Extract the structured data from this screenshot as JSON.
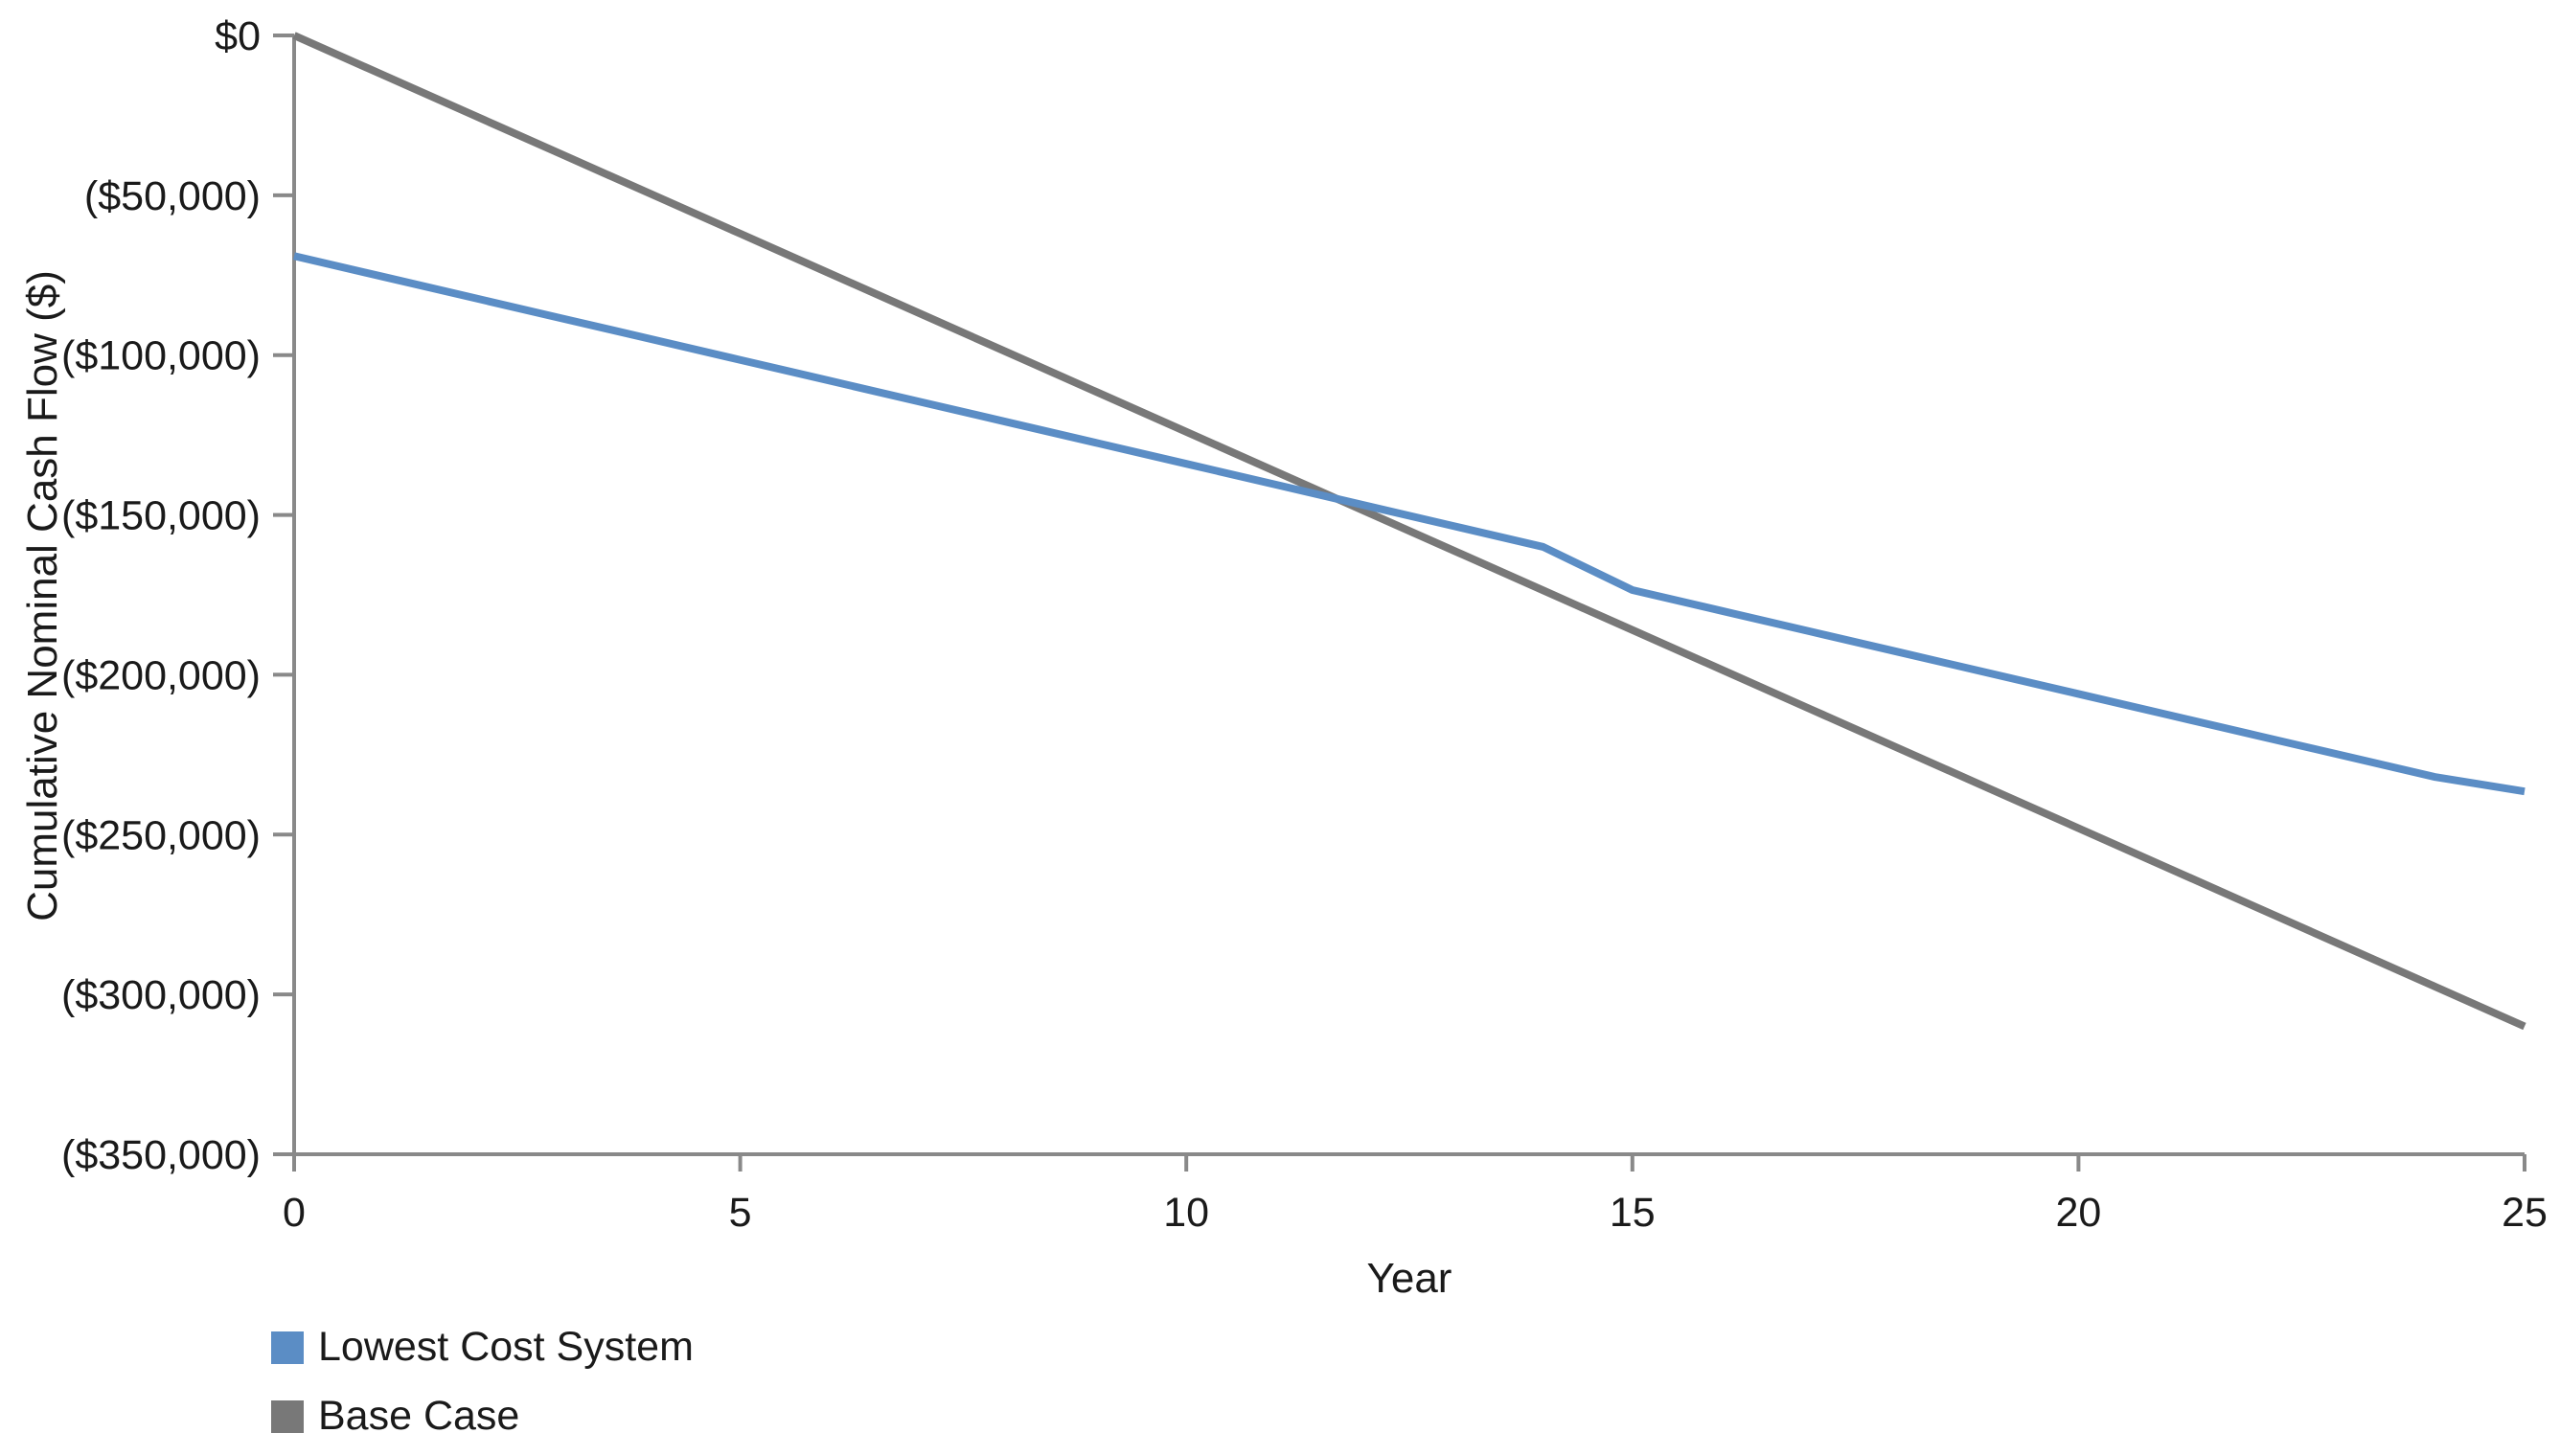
{
  "chart_data": {
    "type": "line",
    "xlabel": "Year",
    "ylabel": "Cumulative Nominal Cash Flow ($)",
    "x": [
      0,
      1,
      2,
      3,
      4,
      5,
      6,
      7,
      8,
      9,
      10,
      11,
      12,
      13,
      14,
      15,
      16,
      17,
      18,
      19,
      20,
      21,
      22,
      23,
      24,
      25
    ],
    "series": [
      {
        "name": "Lowest Cost System",
        "color": "#5B8DC5",
        "values": [
          -69000,
          -75500,
          -82000,
          -88500,
          -95000,
          -101500,
          -108000,
          -114500,
          -121000,
          -127500,
          -134000,
          -140500,
          -147000,
          -153500,
          -160000,
          -173500,
          -180000,
          -186500,
          -193000,
          -199500,
          -206000,
          -212500,
          -219000,
          -225500,
          -232000,
          -236500
        ]
      },
      {
        "name": "Base Case",
        "color": "#787878",
        "values": [
          0,
          -12400,
          -24800,
          -37200,
          -49600,
          -62000,
          -74400,
          -86800,
          -99200,
          -111600,
          -124000,
          -136400,
          -148800,
          -161200,
          -173600,
          -186000,
          -198400,
          -210800,
          -223200,
          -235600,
          -248000,
          -260400,
          -272800,
          -285200,
          -297600,
          -310000
        ]
      }
    ],
    "xlim": [
      0,
      25
    ],
    "ylim": [
      -350000,
      0
    ],
    "x_ticks": [
      0,
      5,
      10,
      15,
      20,
      25
    ],
    "x_tick_labels": [
      "0",
      "5",
      "10",
      "15",
      "20",
      "25"
    ],
    "y_ticks": [
      0,
      -50000,
      -100000,
      -150000,
      -200000,
      -250000,
      -300000,
      -350000
    ],
    "y_tick_labels": [
      "$0",
      "($50,000)",
      "($100,000)",
      "($150,000)",
      "($200,000)",
      "($250,000)",
      "($300,000)",
      "($350,000)"
    ],
    "grid": false,
    "legend_position": "bottom-left"
  },
  "colors": {
    "axis": "#898989",
    "text": "#1A1A1A",
    "background": "#FFFFFF"
  }
}
